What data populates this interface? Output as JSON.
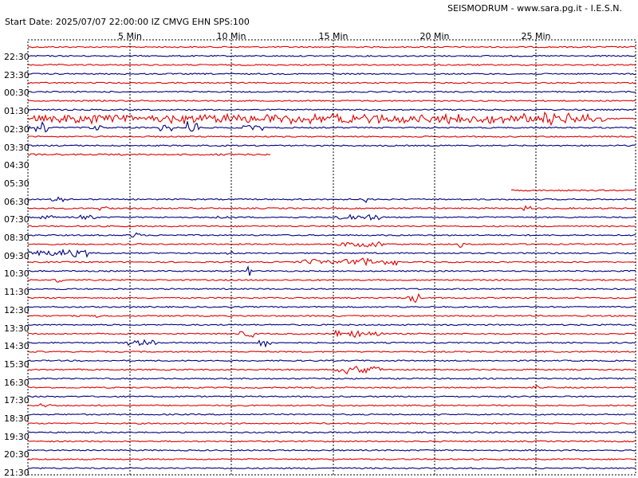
{
  "header": {
    "credit": "SEISMODRUM - www.sara.pg.it - I.E.S.N.",
    "start_line": "Start Date: 2025/07/07 22:00:00 IZ CMVG EHN SPS:100"
  },
  "axis": {
    "minute_labels": [
      "5 Min",
      "10 Min",
      "15 Min",
      "20 Min",
      "25 Min"
    ]
  },
  "hour_labels": [
    "22:30",
    "23:30",
    "00:30",
    "01:30",
    "02:30",
    "03:30",
    "04:30",
    "05:30",
    "06:30",
    "07:30",
    "08:30",
    "09:30",
    "10:30",
    "11:30",
    "12:30",
    "13:30",
    "14:30",
    "15:30",
    "16:30",
    "17:30",
    "18:30",
    "19:30",
    "20:30",
    "21:30"
  ],
  "colors": {
    "trace_a": "#e00000",
    "trace_b": "#000080",
    "grid": "#000000",
    "background": "#ffffff"
  }
}
